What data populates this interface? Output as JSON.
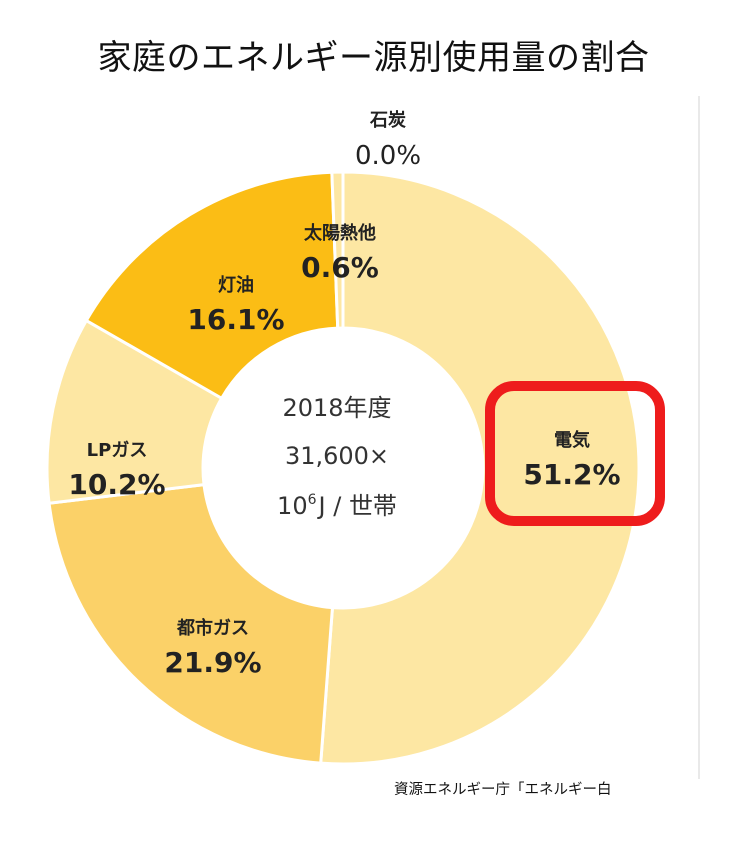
{
  "title": "家庭のエネルギー源別使用量の割合",
  "center": {
    "line1": "2018年度",
    "line2": "31,600×",
    "line3_base": "10",
    "line3_exp": "6",
    "line3_rest": "J / 世帯"
  },
  "highlight": {
    "target": "電気",
    "color": "#ee1c1c"
  },
  "source": "資源エネルギー庁「エネルギー白",
  "chart_data": {
    "type": "pie",
    "donut": true,
    "start": "top, clockwise",
    "slices": [
      {
        "label": "電気",
        "value": 51.2,
        "display": "51.2%",
        "color": "#fde7a3"
      },
      {
        "label": "都市ガス",
        "value": 21.9,
        "display": "21.9%",
        "color": "#fbd168"
      },
      {
        "label": "LPガス",
        "value": 10.2,
        "display": "10.2%",
        "color": "#fde7a3"
      },
      {
        "label": "灯油",
        "value": 16.1,
        "display": "16.1%",
        "color": "#fbbd15"
      },
      {
        "label": "太陽熱他",
        "value": 0.6,
        "display": "0.6%",
        "color": "#fde7a3"
      },
      {
        "label": "石炭",
        "value": 0.0,
        "display": "0.0%",
        "color": "#fde7a3"
      }
    ]
  }
}
